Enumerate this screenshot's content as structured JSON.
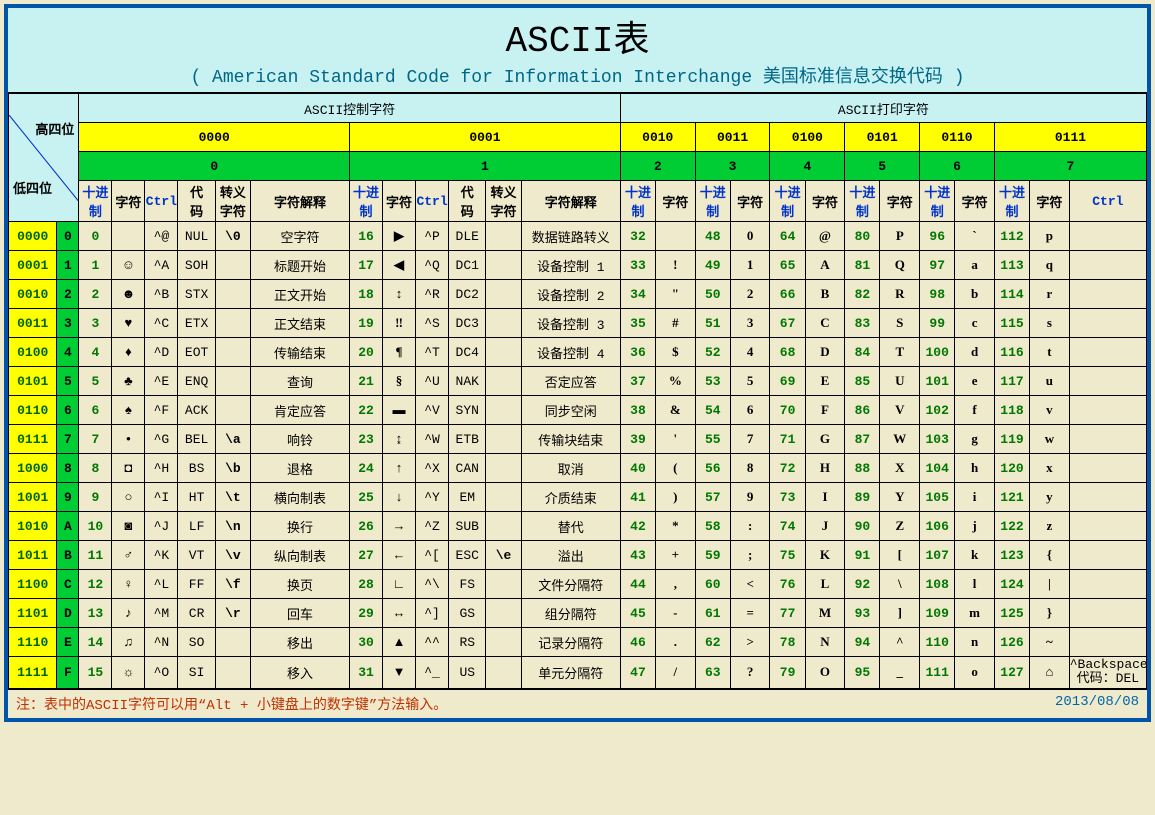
{
  "title": "ASCII表",
  "subtitle": "( American Standard Code for Information Interchange  美国标准信息交换代码 )",
  "diag_high": "高四位",
  "diag_low": "低四位",
  "section_control": "ASCII控制字符",
  "section_print": "ASCII打印字符",
  "bin_groups": [
    "0000",
    "0001",
    "0010",
    "0011",
    "0100",
    "0101",
    "0110",
    "0111"
  ],
  "hex_groups": [
    "0",
    "1",
    "2",
    "3",
    "4",
    "5",
    "6",
    "7"
  ],
  "sub_ctrl": {
    "dec": "十进\n制",
    "char": "字符",
    "ctrl": "Ctrl",
    "code": "代\n码",
    "esc": "转义\n字符",
    "desc": "字符解释"
  },
  "sub_print": {
    "dec": "十进\n制",
    "char": "字符",
    "ctrl": "Ctrl"
  },
  "rows": [
    {
      "bin": "0000",
      "hex": "0",
      "c": [
        {
          "dec": "0",
          "char": "",
          "ctrl": "^@",
          "code": "NUL",
          "esc": "\\0",
          "desc": "空字符"
        },
        {
          "dec": "16",
          "char": "▶",
          "ctrl": "^P",
          "code": "DLE",
          "esc": "",
          "desc": "数据链路转义"
        },
        {
          "dec": "32",
          "char": ""
        },
        {
          "dec": "48",
          "char": "0"
        },
        {
          "dec": "64",
          "char": "@"
        },
        {
          "dec": "80",
          "char": "P"
        },
        {
          "dec": "96",
          "char": "`"
        },
        {
          "dec": "112",
          "char": "p",
          "tail": ""
        }
      ]
    },
    {
      "bin": "0001",
      "hex": "1",
      "c": [
        {
          "dec": "1",
          "char": "☺",
          "ctrl": "^A",
          "code": "SOH",
          "esc": "",
          "desc": "标题开始"
        },
        {
          "dec": "17",
          "char": "◀",
          "ctrl": "^Q",
          "code": "DC1",
          "esc": "",
          "desc": "设备控制 1"
        },
        {
          "dec": "33",
          "char": "!"
        },
        {
          "dec": "49",
          "char": "1"
        },
        {
          "dec": "65",
          "char": "A"
        },
        {
          "dec": "81",
          "char": "Q"
        },
        {
          "dec": "97",
          "char": "a"
        },
        {
          "dec": "113",
          "char": "q",
          "tail": ""
        }
      ]
    },
    {
      "bin": "0010",
      "hex": "2",
      "c": [
        {
          "dec": "2",
          "char": "☻",
          "ctrl": "^B",
          "code": "STX",
          "esc": "",
          "desc": "正文开始"
        },
        {
          "dec": "18",
          "char": "↕",
          "ctrl": "^R",
          "code": "DC2",
          "esc": "",
          "desc": "设备控制 2"
        },
        {
          "dec": "34",
          "char": "\""
        },
        {
          "dec": "50",
          "char": "2"
        },
        {
          "dec": "66",
          "char": "B"
        },
        {
          "dec": "82",
          "char": "R"
        },
        {
          "dec": "98",
          "char": "b"
        },
        {
          "dec": "114",
          "char": "r",
          "tail": ""
        }
      ]
    },
    {
      "bin": "0011",
      "hex": "3",
      "c": [
        {
          "dec": "3",
          "char": "♥",
          "ctrl": "^C",
          "code": "ETX",
          "esc": "",
          "desc": "正文结束"
        },
        {
          "dec": "19",
          "char": "‼",
          "ctrl": "^S",
          "code": "DC3",
          "esc": "",
          "desc": "设备控制 3"
        },
        {
          "dec": "35",
          "char": "#"
        },
        {
          "dec": "51",
          "char": "3"
        },
        {
          "dec": "67",
          "char": "C"
        },
        {
          "dec": "83",
          "char": "S"
        },
        {
          "dec": "99",
          "char": "c"
        },
        {
          "dec": "115",
          "char": "s",
          "tail": ""
        }
      ]
    },
    {
      "bin": "0100",
      "hex": "4",
      "c": [
        {
          "dec": "4",
          "char": "♦",
          "ctrl": "^D",
          "code": "EOT",
          "esc": "",
          "desc": "传输结束"
        },
        {
          "dec": "20",
          "char": "¶",
          "ctrl": "^T",
          "code": "DC4",
          "esc": "",
          "desc": "设备控制 4"
        },
        {
          "dec": "36",
          "char": "$"
        },
        {
          "dec": "52",
          "char": "4"
        },
        {
          "dec": "68",
          "char": "D"
        },
        {
          "dec": "84",
          "char": "T"
        },
        {
          "dec": "100",
          "char": "d"
        },
        {
          "dec": "116",
          "char": "t",
          "tail": ""
        }
      ]
    },
    {
      "bin": "0101",
      "hex": "5",
      "c": [
        {
          "dec": "5",
          "char": "♣",
          "ctrl": "^E",
          "code": "ENQ",
          "esc": "",
          "desc": "查询"
        },
        {
          "dec": "21",
          "char": "§",
          "ctrl": "^U",
          "code": "NAK",
          "esc": "",
          "desc": "否定应答"
        },
        {
          "dec": "37",
          "char": "%"
        },
        {
          "dec": "53",
          "char": "5"
        },
        {
          "dec": "69",
          "char": "E"
        },
        {
          "dec": "85",
          "char": "U"
        },
        {
          "dec": "101",
          "char": "e"
        },
        {
          "dec": "117",
          "char": "u",
          "tail": ""
        }
      ]
    },
    {
      "bin": "0110",
      "hex": "6",
      "c": [
        {
          "dec": "6",
          "char": "♠",
          "ctrl": "^F",
          "code": "ACK",
          "esc": "",
          "desc": "肯定应答"
        },
        {
          "dec": "22",
          "char": "▬",
          "ctrl": "^V",
          "code": "SYN",
          "esc": "",
          "desc": "同步空闲"
        },
        {
          "dec": "38",
          "char": "&"
        },
        {
          "dec": "54",
          "char": "6"
        },
        {
          "dec": "70",
          "char": "F"
        },
        {
          "dec": "86",
          "char": "V"
        },
        {
          "dec": "102",
          "char": "f"
        },
        {
          "dec": "118",
          "char": "v",
          "tail": ""
        }
      ]
    },
    {
      "bin": "0111",
      "hex": "7",
      "c": [
        {
          "dec": "7",
          "char": "•",
          "ctrl": "^G",
          "code": "BEL",
          "esc": "\\a",
          "desc": "响铃"
        },
        {
          "dec": "23",
          "char": "↨",
          "ctrl": "^W",
          "code": "ETB",
          "esc": "",
          "desc": "传输块结束"
        },
        {
          "dec": "39",
          "char": "'"
        },
        {
          "dec": "55",
          "char": "7"
        },
        {
          "dec": "71",
          "char": "G"
        },
        {
          "dec": "87",
          "char": "W"
        },
        {
          "dec": "103",
          "char": "g"
        },
        {
          "dec": "119",
          "char": "w",
          "tail": ""
        }
      ]
    },
    {
      "bin": "1000",
      "hex": "8",
      "c": [
        {
          "dec": "8",
          "char": "◘",
          "ctrl": "^H",
          "code": "BS",
          "esc": "\\b",
          "desc": "退格"
        },
        {
          "dec": "24",
          "char": "↑",
          "ctrl": "^X",
          "code": "CAN",
          "esc": "",
          "desc": "取消"
        },
        {
          "dec": "40",
          "char": "("
        },
        {
          "dec": "56",
          "char": "8"
        },
        {
          "dec": "72",
          "char": "H"
        },
        {
          "dec": "88",
          "char": "X"
        },
        {
          "dec": "104",
          "char": "h"
        },
        {
          "dec": "120",
          "char": "x",
          "tail": ""
        }
      ]
    },
    {
      "bin": "1001",
      "hex": "9",
      "c": [
        {
          "dec": "9",
          "char": "○",
          "ctrl": "^I",
          "code": "HT",
          "esc": "\\t",
          "desc": "横向制表"
        },
        {
          "dec": "25",
          "char": "↓",
          "ctrl": "^Y",
          "code": "EM",
          "esc": "",
          "desc": "介质结束"
        },
        {
          "dec": "41",
          "char": ")"
        },
        {
          "dec": "57",
          "char": "9"
        },
        {
          "dec": "73",
          "char": "I"
        },
        {
          "dec": "89",
          "char": "Y"
        },
        {
          "dec": "105",
          "char": "i"
        },
        {
          "dec": "121",
          "char": "y",
          "tail": ""
        }
      ]
    },
    {
      "bin": "1010",
      "hex": "A",
      "c": [
        {
          "dec": "10",
          "char": "◙",
          "ctrl": "^J",
          "code": "LF",
          "esc": "\\n",
          "desc": "换行"
        },
        {
          "dec": "26",
          "char": "→",
          "ctrl": "^Z",
          "code": "SUB",
          "esc": "",
          "desc": "替代"
        },
        {
          "dec": "42",
          "char": "*"
        },
        {
          "dec": "58",
          "char": ":"
        },
        {
          "dec": "74",
          "char": "J"
        },
        {
          "dec": "90",
          "char": "Z"
        },
        {
          "dec": "106",
          "char": "j"
        },
        {
          "dec": "122",
          "char": "z",
          "tail": ""
        }
      ]
    },
    {
      "bin": "1011",
      "hex": "B",
      "c": [
        {
          "dec": "11",
          "char": "♂",
          "ctrl": "^K",
          "code": "VT",
          "esc": "\\v",
          "desc": "纵向制表"
        },
        {
          "dec": "27",
          "char": "←",
          "ctrl": "^[",
          "code": "ESC",
          "esc": "\\e",
          "desc": "溢出"
        },
        {
          "dec": "43",
          "char": "+"
        },
        {
          "dec": "59",
          "char": ";"
        },
        {
          "dec": "75",
          "char": "K"
        },
        {
          "dec": "91",
          "char": "["
        },
        {
          "dec": "107",
          "char": "k"
        },
        {
          "dec": "123",
          "char": "{",
          "tail": ""
        }
      ]
    },
    {
      "bin": "1100",
      "hex": "C",
      "c": [
        {
          "dec": "12",
          "char": "♀",
          "ctrl": "^L",
          "code": "FF",
          "esc": "\\f",
          "desc": "换页"
        },
        {
          "dec": "28",
          "char": "∟",
          "ctrl": "^\\",
          "code": "FS",
          "esc": "",
          "desc": "文件分隔符"
        },
        {
          "dec": "44",
          "char": ","
        },
        {
          "dec": "60",
          "char": "<"
        },
        {
          "dec": "76",
          "char": "L"
        },
        {
          "dec": "92",
          "char": "\\"
        },
        {
          "dec": "108",
          "char": "l"
        },
        {
          "dec": "124",
          "char": "|",
          "tail": ""
        }
      ]
    },
    {
      "bin": "1101",
      "hex": "D",
      "c": [
        {
          "dec": "13",
          "char": "♪",
          "ctrl": "^M",
          "code": "CR",
          "esc": "\\r",
          "desc": "回车"
        },
        {
          "dec": "29",
          "char": "↔",
          "ctrl": "^]",
          "code": "GS",
          "esc": "",
          "desc": "组分隔符"
        },
        {
          "dec": "45",
          "char": "-"
        },
        {
          "dec": "61",
          "char": "="
        },
        {
          "dec": "77",
          "char": "M"
        },
        {
          "dec": "93",
          "char": "]"
        },
        {
          "dec": "109",
          "char": "m"
        },
        {
          "dec": "125",
          "char": "}",
          "tail": ""
        }
      ]
    },
    {
      "bin": "1110",
      "hex": "E",
      "c": [
        {
          "dec": "14",
          "char": "♫",
          "ctrl": "^N",
          "code": "SO",
          "esc": "",
          "desc": "移出"
        },
        {
          "dec": "30",
          "char": "▲",
          "ctrl": "^^",
          "code": "RS",
          "esc": "",
          "desc": "记录分隔符"
        },
        {
          "dec": "46",
          "char": "."
        },
        {
          "dec": "62",
          "char": ">"
        },
        {
          "dec": "78",
          "char": "N"
        },
        {
          "dec": "94",
          "char": "^"
        },
        {
          "dec": "110",
          "char": "n"
        },
        {
          "dec": "126",
          "char": "~",
          "tail": ""
        }
      ]
    },
    {
      "bin": "1111",
      "hex": "F",
      "c": [
        {
          "dec": "15",
          "char": "☼",
          "ctrl": "^O",
          "code": "SI",
          "esc": "",
          "desc": "移入"
        },
        {
          "dec": "31",
          "char": "▼",
          "ctrl": "^_",
          "code": "US",
          "esc": "",
          "desc": "单元分隔符"
        },
        {
          "dec": "47",
          "char": "/"
        },
        {
          "dec": "63",
          "char": "?"
        },
        {
          "dec": "79",
          "char": "O"
        },
        {
          "dec": "95",
          "char": "_"
        },
        {
          "dec": "111",
          "char": "o"
        },
        {
          "dec": "127",
          "char": "⌂",
          "tail": "^Backspace\n代码：DEL"
        }
      ]
    }
  ],
  "footer_note": "注：表中的ASCII字符可以用“Alt + 小键盘上的数字键”方法输入。",
  "footer_date": "2013/08/08",
  "colors": {
    "frame_border": "#0055aa",
    "bg_main": "#f0eacc",
    "title_band": "#c8f2f2",
    "green": "#00cc33",
    "yellow": "#ffff00",
    "cyan": "#c8f2f2",
    "dec_text": "#007700",
    "note_text": "#c03000",
    "date_text": "#0066aa",
    "blue_text": "#0033cc"
  }
}
